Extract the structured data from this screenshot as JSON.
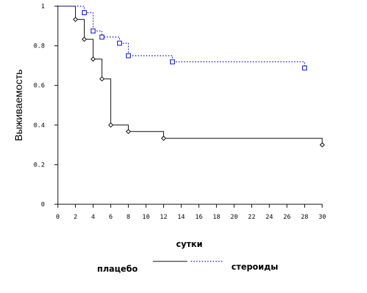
{
  "chart_data": {
    "type": "line",
    "title": "",
    "xlabel": "сутки",
    "ylabel": "Выживаемость",
    "xlim": [
      0,
      30
    ],
    "ylim": [
      0,
      1
    ],
    "x_ticks": [
      "0",
      "2",
      "4",
      "6",
      "8",
      "10",
      "12",
      "14",
      "16",
      "18",
      "20",
      "22",
      "24",
      "26",
      "28",
      "30"
    ],
    "y_ticks": [
      "0",
      "0.2",
      "0.4",
      "0.6",
      "0.8",
      "1"
    ],
    "grid": false,
    "legend_position": "bottom",
    "series": [
      {
        "name": "плацебо",
        "color": "#000000",
        "line_style": "solid",
        "marker": "diamond",
        "steps": [
          {
            "x": 0,
            "y": 1
          },
          {
            "x": 2,
            "y": 0.933
          },
          {
            "x": 3,
            "y": 0.833
          },
          {
            "x": 4,
            "y": 0.733
          },
          {
            "x": 5,
            "y": 0.633
          },
          {
            "x": 6,
            "y": 0.4
          },
          {
            "x": 8,
            "y": 0.367
          },
          {
            "x": 12,
            "y": 0.333
          },
          {
            "x": 30,
            "y": 0.3
          }
        ]
      },
      {
        "name": "стероиды",
        "color": "#0000cc",
        "line_style": "dashed",
        "marker": "square",
        "steps": [
          {
            "x": 0,
            "y": 1
          },
          {
            "x": 3,
            "y": 0.967
          },
          {
            "x": 4,
            "y": 0.875
          },
          {
            "x": 5,
            "y": 0.844
          },
          {
            "x": 7,
            "y": 0.813
          },
          {
            "x": 8,
            "y": 0.75
          },
          {
            "x": 13,
            "y": 0.719
          },
          {
            "x": 28,
            "y": 0.688
          }
        ]
      }
    ]
  }
}
